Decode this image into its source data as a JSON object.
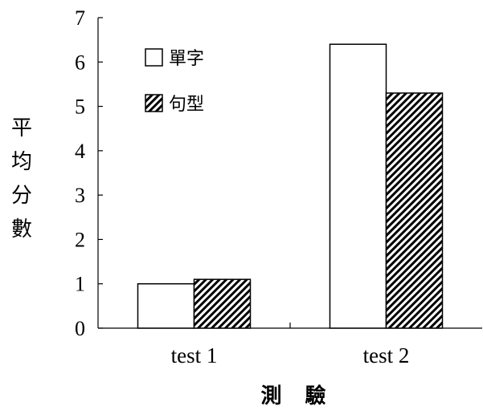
{
  "chart_data": {
    "type": "bar",
    "categories": [
      "test 1",
      "test 2"
    ],
    "series": [
      {
        "name": "單字",
        "values": [
          1.0,
          6.4
        ],
        "fill": "#ffffff",
        "pattern": "none"
      },
      {
        "name": "句型",
        "values": [
          1.1,
          5.3
        ],
        "fill": "#000000",
        "pattern": "diagonal-hatch"
      }
    ],
    "title": "",
    "xlabel": "測 驗",
    "ylabel": "平均分數",
    "ylim": [
      0,
      7
    ],
    "yticks": [
      0,
      1,
      2,
      3,
      4,
      5,
      6,
      7
    ],
    "grid": false,
    "legend_position": "top-left"
  }
}
